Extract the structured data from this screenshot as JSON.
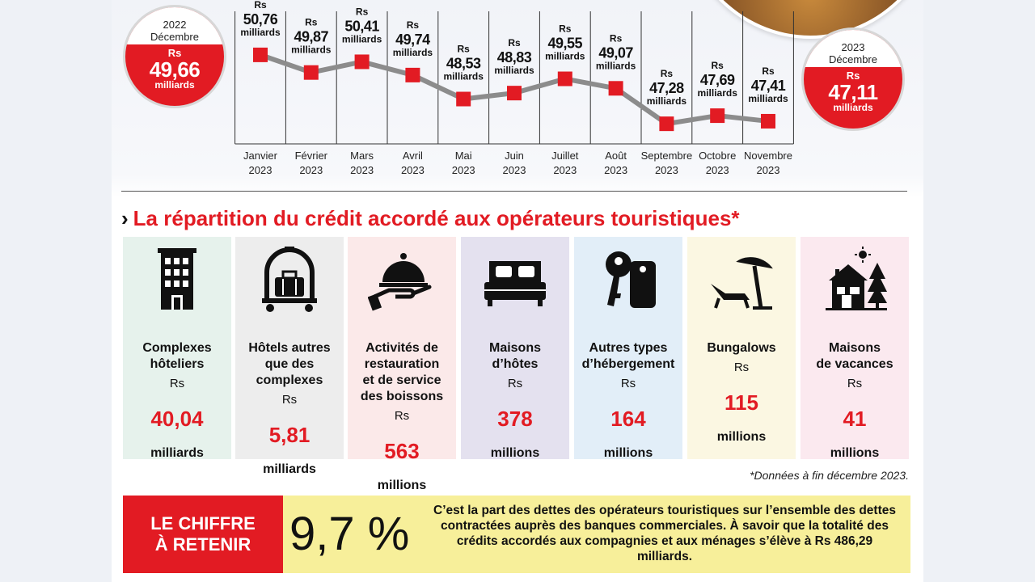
{
  "header": {
    "start_circle": {
      "year": "2022",
      "month": "Décembre",
      "rs": "Rs",
      "amount": "49,66",
      "unit": "milliards"
    },
    "end_circle": {
      "year": "2023",
      "month": "Décembre",
      "rs": "Rs",
      "amount": "47,11",
      "unit": "milliards"
    }
  },
  "chart_data": {
    "type": "line",
    "categories": [
      "Janvier 2023",
      "Février 2023",
      "Mars 2023",
      "Avril 2023",
      "Mai 2023",
      "Juin 2023",
      "Juillet 2023",
      "Août 2023",
      "Septembre 2023",
      "Octobre 2023",
      "Novembre 2023"
    ],
    "month_labels": [
      "Janvier",
      "Février",
      "Mars",
      "Avril",
      "Mai",
      "Juin",
      "Juillet",
      "Août",
      "Septembre",
      "Octobre",
      "Novembre"
    ],
    "year_label": "2023",
    "values": [
      50.76,
      49.87,
      50.41,
      49.74,
      48.53,
      48.83,
      49.55,
      49.07,
      47.28,
      47.69,
      47.41
    ],
    "value_labels": [
      "50,76",
      "49,87",
      "50,41",
      "49,74",
      "48,53",
      "48,83",
      "49,55",
      "49,07",
      "47,28",
      "47,69",
      "47,41"
    ],
    "value_prefix": "Rs",
    "value_unit": "milliards",
    "ylim": [
      45,
      52
    ],
    "line_color": "#8c8c8c",
    "marker_color": "#e21b23"
  },
  "section": {
    "chevron": "›",
    "title": "La répartition du crédit accordé aux opérateurs touristiques*"
  },
  "cards": [
    {
      "icon": "hotel-building-icon",
      "label": "Complexes\nhôteliers",
      "rs": "Rs",
      "value": "40,04",
      "unit": "milliards",
      "bg": "#e6f2ec"
    },
    {
      "icon": "luggage-cart-icon",
      "label": "Hôtels autres\nque des\ncomplexes",
      "rs": "Rs",
      "value": "5,81",
      "unit": "milliards",
      "bg": "#ededed"
    },
    {
      "icon": "serving-cloche-icon",
      "label": "Activités de\nrestauration\net de service\ndes boissons",
      "rs": "Rs",
      "value": "563",
      "unit": "millions",
      "bg": "#fbe9e9"
    },
    {
      "icon": "bed-icon",
      "label": "Maisons\nd’hôtes",
      "rs": "Rs",
      "value": "378",
      "unit": "millions",
      "bg": "#e4e1ef"
    },
    {
      "icon": "keys-icon",
      "label": "Autres types\nd’hébergement",
      "rs": "Rs",
      "value": "164",
      "unit": "millions",
      "bg": "#e2eef8"
    },
    {
      "icon": "beach-umbrella-lounger-icon",
      "label": "Bungalows",
      "rs": "Rs",
      "value": "115",
      "unit": "millions",
      "bg": "#fbf7e2"
    },
    {
      "icon": "house-tree-icon",
      "label": "Maisons\nde vacances",
      "rs": "Rs",
      "value": "41",
      "unit": "millions",
      "bg": "#fbe9ef"
    }
  ],
  "footnote": "*Données à fin décembre 2023.",
  "retain": {
    "label": "LE CHIFFRE\nÀ RETENIR",
    "figure": "9,7 %",
    "text": "C’est la part des dettes des opérateurs touristiques sur l’ensemble des dettes contractées auprès des banques commerciales. À savoir que la totalité des crédits accordés aux compagnies et aux ménages s’élève à Rs 486,29 milliards."
  }
}
